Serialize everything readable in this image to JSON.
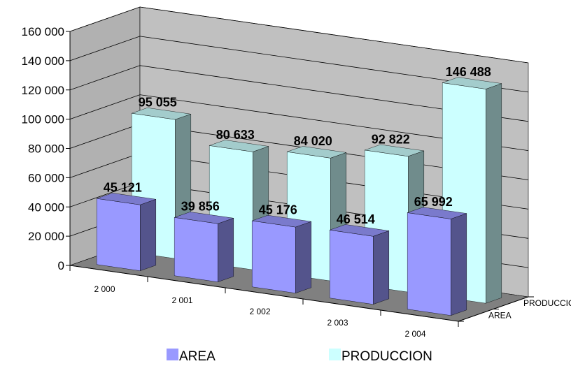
{
  "chart_data": {
    "type": "bar",
    "title": "",
    "categories": [
      "2 000",
      "2 001",
      "2 002",
      "2 003",
      "2 004"
    ],
    "series": [
      {
        "name": "AREA",
        "values": [
          45121,
          39856,
          45176,
          46514,
          65992
        ],
        "labels": [
          "45 121",
          "39 856",
          "45 176",
          "46 514",
          "65 992"
        ],
        "color": "#9999ff"
      },
      {
        "name": "PRODUCCION",
        "values": [
          95055,
          80633,
          84020,
          92822,
          146488
        ],
        "labels": [
          "95 055",
          "80 633",
          "84 020",
          "92 822",
          "146 488"
        ],
        "color": "#ccffff"
      }
    ],
    "ylim": [
      0,
      160000
    ],
    "yticks": [
      "0",
      "20 000",
      "40 000",
      "60 000",
      "80 000",
      "100 000",
      "120 000",
      "140 000",
      "160 000"
    ],
    "depth_axis_labels": [
      "AREA",
      "PRODUCCION"
    ],
    "grid": true,
    "legend_position": "bottom",
    "wall_color": "#c0c0c0",
    "floor_color": "#808080"
  }
}
